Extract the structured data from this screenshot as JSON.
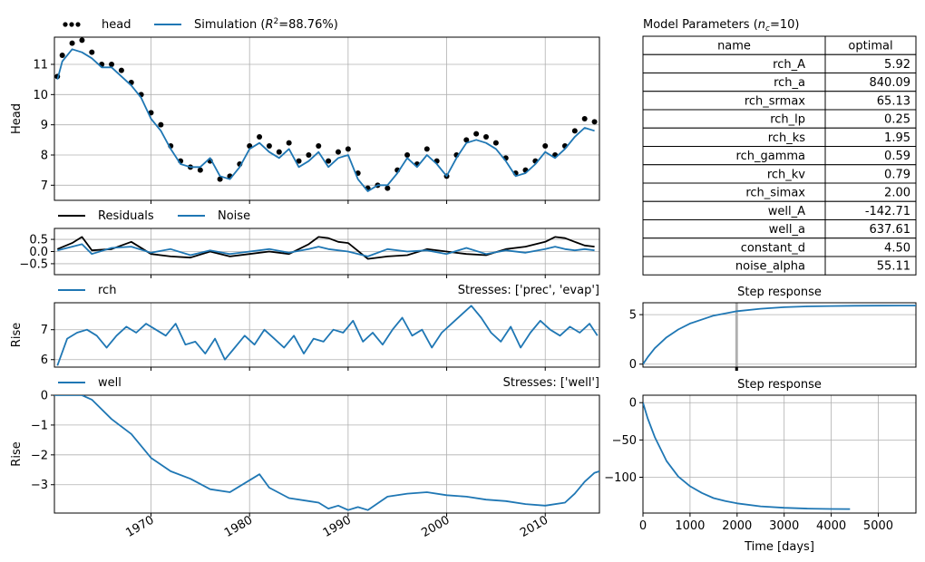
{
  "colors": {
    "blue": "#1f77b4",
    "black": "#000000",
    "grid": "#b0b0b0"
  },
  "chart_data": [
    {
      "type": "line",
      "legend": [
        "head",
        "Simulation (R²=88.76%)"
      ],
      "legend_placement": "top-left, outside",
      "xlabel": "",
      "ylabel": "Head",
      "ylim": [
        6.5,
        11.9
      ],
      "yticks": [
        7,
        8,
        9,
        10,
        11
      ],
      "xlim": [
        1960.2,
        2015.5
      ],
      "xticks": [
        1970,
        1980,
        1990,
        2000,
        2010
      ],
      "grid": true,
      "series": [
        {
          "name": "head",
          "style": "points",
          "color": "#000000",
          "x": [
            1960.5,
            1961,
            1962,
            1963,
            1964,
            1965,
            1966,
            1967,
            1968,
            1969,
            1970,
            1971,
            1972,
            1973,
            1974,
            1975,
            1976,
            1977,
            1978,
            1979,
            1980,
            1981,
            1982,
            1983,
            1984,
            1985,
            1986,
            1987,
            1988,
            1989,
            1990,
            1991,
            1992,
            1993,
            1994,
            1995,
            1996,
            1997,
            1998,
            1999,
            2000,
            2001,
            2002,
            2003,
            2004,
            2005,
            2006,
            2007,
            2008,
            2009,
            2010,
            2011,
            2012,
            2013,
            2014,
            2015
          ],
          "y": [
            10.6,
            11.3,
            11.7,
            11.8,
            11.4,
            11.0,
            11.0,
            10.8,
            10.4,
            10.0,
            9.4,
            9.0,
            8.3,
            7.8,
            7.6,
            7.5,
            7.8,
            7.2,
            7.3,
            7.7,
            8.3,
            8.6,
            8.3,
            8.1,
            8.4,
            7.8,
            8.0,
            8.3,
            7.8,
            8.1,
            8.2,
            7.4,
            6.9,
            7.0,
            6.9,
            7.5,
            8.0,
            7.7,
            8.2,
            7.8,
            7.3,
            8.0,
            8.5,
            8.7,
            8.6,
            8.4,
            7.9,
            7.4,
            7.5,
            7.8,
            8.3,
            8.0,
            8.3,
            8.8,
            9.2,
            9.1
          ]
        },
        {
          "name": "Simulation (R²=88.76%)",
          "style": "line",
          "color": "#1f77b4",
          "x": [
            1960.5,
            1961,
            1962,
            1963,
            1964,
            1965,
            1966,
            1967,
            1968,
            1969,
            1970,
            1971,
            1972,
            1973,
            1974,
            1975,
            1976,
            1977,
            1978,
            1979,
            1980,
            1981,
            1982,
            1983,
            1984,
            1985,
            1986,
            1987,
            1988,
            1989,
            1990,
            1991,
            1992,
            1993,
            1994,
            1995,
            1996,
            1997,
            1998,
            1999,
            2000,
            2001,
            2002,
            2003,
            2004,
            2005,
            2006,
            2007,
            2008,
            2009,
            2010,
            2011,
            2012,
            2013,
            2014,
            2015
          ],
          "y": [
            10.5,
            11.1,
            11.5,
            11.4,
            11.2,
            10.9,
            10.9,
            10.6,
            10.3,
            9.9,
            9.2,
            8.8,
            8.2,
            7.7,
            7.6,
            7.6,
            7.9,
            7.3,
            7.2,
            7.6,
            8.2,
            8.4,
            8.1,
            7.9,
            8.2,
            7.6,
            7.8,
            8.1,
            7.6,
            7.9,
            8.0,
            7.2,
            6.8,
            7.0,
            7.0,
            7.4,
            7.9,
            7.6,
            8.0,
            7.7,
            7.3,
            7.9,
            8.4,
            8.5,
            8.4,
            8.2,
            7.8,
            7.3,
            7.4,
            7.7,
            8.1,
            7.9,
            8.2,
            8.6,
            8.9,
            8.8
          ]
        }
      ]
    },
    {
      "type": "line",
      "legend": [
        "Residuals",
        "Noise"
      ],
      "legend_placement": "top-left, outside",
      "ylim": [
        -0.95,
        0.95
      ],
      "yticks": [
        0.5,
        0.0,
        -0.5
      ],
      "ytick_labels": [
        "0.5",
        "0.0",
        "−0.5"
      ],
      "xlim": [
        1960.2,
        2015.5
      ],
      "grid": true,
      "series": [
        {
          "name": "Residuals",
          "color": "#000000",
          "x": [
            1960.5,
            1962,
            1963,
            1964,
            1966,
            1968,
            1970,
            1972,
            1974,
            1976,
            1978,
            1980,
            1982,
            1984,
            1986,
            1987,
            1988,
            1989,
            1990,
            1992,
            1994,
            1996,
            1998,
            2000,
            2002,
            2004,
            2006,
            2008,
            2010,
            2011,
            2012,
            2013,
            2014,
            2015
          ],
          "y": [
            0.1,
            0.35,
            0.6,
            0.05,
            0.1,
            0.4,
            -0.1,
            -0.2,
            -0.25,
            0.0,
            -0.2,
            -0.1,
            0.0,
            -0.1,
            0.3,
            0.6,
            0.55,
            0.4,
            0.35,
            -0.3,
            -0.2,
            -0.15,
            0.1,
            0.0,
            -0.1,
            -0.15,
            0.1,
            0.2,
            0.4,
            0.6,
            0.55,
            0.4,
            0.25,
            0.2
          ]
        },
        {
          "name": "Noise",
          "color": "#1f77b4",
          "x": [
            1960.5,
            1962,
            1963,
            1964,
            1966,
            1968,
            1970,
            1972,
            1974,
            1976,
            1978,
            1980,
            1982,
            1984,
            1986,
            1987,
            1988,
            1989,
            1990,
            1992,
            1994,
            1996,
            1998,
            2000,
            2002,
            2004,
            2006,
            2008,
            2010,
            2011,
            2012,
            2013,
            2014,
            2015
          ],
          "y": [
            0.05,
            0.2,
            0.3,
            -0.1,
            0.15,
            0.2,
            -0.05,
            0.1,
            -0.15,
            0.05,
            -0.1,
            0.0,
            0.1,
            -0.05,
            0.1,
            0.2,
            0.1,
            0.05,
            0.0,
            -0.2,
            0.1,
            0.0,
            0.05,
            -0.1,
            0.15,
            -0.1,
            0.05,
            -0.05,
            0.1,
            0.2,
            0.1,
            0.05,
            0.1,
            0.05
          ]
        }
      ]
    },
    {
      "type": "line",
      "legend": [
        "rch"
      ],
      "stresses_label": "Stresses: ['prec', 'evap']",
      "ylabel": "Rise",
      "ylim": [
        5.75,
        7.9
      ],
      "yticks": [
        6,
        7
      ],
      "xlim": [
        1960.2,
        2015.5
      ],
      "grid": true,
      "series": [
        {
          "name": "rch",
          "color": "#1f77b4",
          "x": [
            1960.5,
            1961.5,
            1962.5,
            1963.5,
            1964.5,
            1965.5,
            1966.5,
            1967.5,
            1968.5,
            1969.5,
            1970.5,
            1971.5,
            1972.5,
            1973.5,
            1974.5,
            1975.5,
            1976.5,
            1977.5,
            1978.5,
            1979.5,
            1980.5,
            1981.5,
            1982.5,
            1983.5,
            1984.5,
            1985.5,
            1986.5,
            1987.5,
            1988.5,
            1989.5,
            1990.5,
            1991.5,
            1992.5,
            1993.5,
            1994.5,
            1995.5,
            1996.5,
            1997.5,
            1998.5,
            1999.5,
            2000.5,
            2001.5,
            2002.5,
            2003.5,
            2004.5,
            2005.5,
            2006.5,
            2007.5,
            2008.5,
            2009.5,
            2010.5,
            2011.5,
            2012.5,
            2013.5,
            2014.5,
            2015.3
          ],
          "y": [
            5.8,
            6.7,
            6.9,
            7.0,
            6.8,
            6.4,
            6.8,
            7.1,
            6.9,
            7.2,
            7.0,
            6.8,
            7.2,
            6.5,
            6.6,
            6.2,
            6.7,
            6.0,
            6.4,
            6.8,
            6.5,
            7.0,
            6.7,
            6.4,
            6.8,
            6.2,
            6.7,
            6.6,
            7.0,
            6.9,
            7.3,
            6.6,
            6.9,
            6.5,
            7.0,
            7.4,
            6.8,
            7.0,
            6.4,
            6.9,
            7.2,
            7.5,
            7.8,
            7.4,
            6.9,
            6.6,
            7.1,
            6.4,
            6.9,
            7.3,
            7.0,
            6.8,
            7.1,
            6.9,
            7.2,
            6.8
          ]
        }
      ]
    },
    {
      "type": "line",
      "legend": [
        "well"
      ],
      "stresses_label": "Stresses: ['well']",
      "ylabel": "Rise",
      "ylim": [
        -3.95,
        0
      ],
      "yticks": [
        0,
        -1,
        -2,
        -3
      ],
      "ytick_labels": [
        "0",
        "−1",
        "−2",
        "−3"
      ],
      "xlim": [
        1960.2,
        2015.5
      ],
      "xticks": [
        1970,
        1980,
        1990,
        2000,
        2010
      ],
      "grid": true,
      "series": [
        {
          "name": "well",
          "color": "#1f77b4",
          "x": [
            1960.2,
            1963,
            1964,
            1966,
            1968,
            1970,
            1972,
            1974,
            1976,
            1978,
            1980,
            1981,
            1982,
            1984,
            1986,
            1987,
            1988,
            1989,
            1990,
            1991,
            1992,
            1994,
            1996,
            1998,
            2000,
            2002,
            2004,
            2006,
            2008,
            2010,
            2012,
            2013,
            2014,
            2015,
            2015.5
          ],
          "y": [
            0,
            0,
            -0.15,
            -0.8,
            -1.3,
            -2.1,
            -2.55,
            -2.8,
            -3.15,
            -3.25,
            -2.85,
            -2.65,
            -3.1,
            -3.45,
            -3.55,
            -3.6,
            -3.8,
            -3.7,
            -3.85,
            -3.75,
            -3.85,
            -3.4,
            -3.3,
            -3.25,
            -3.35,
            -3.4,
            -3.5,
            -3.55,
            -3.65,
            -3.7,
            -3.6,
            -3.3,
            -2.9,
            -2.6,
            -2.55
          ]
        }
      ]
    },
    {
      "type": "line",
      "title": "Step response",
      "xlim": [
        0,
        5800
      ],
      "ylim": [
        -0.3,
        6.2
      ],
      "yticks": [
        0,
        5
      ],
      "grid": true,
      "series": [
        {
          "name": "rch",
          "color": "#1f77b4",
          "x": [
            0,
            100,
            250,
            500,
            750,
            1000,
            1500,
            2000,
            2500,
            3000,
            3500,
            4000,
            4500,
            5000,
            5500,
            5800
          ],
          "y": [
            0,
            0.7,
            1.6,
            2.7,
            3.5,
            4.1,
            4.9,
            5.35,
            5.6,
            5.75,
            5.83,
            5.87,
            5.9,
            5.91,
            5.92,
            5.92
          ]
        }
      ]
    },
    {
      "type": "line",
      "title": "Step response",
      "xlabel": "Time [days]",
      "xlim": [
        0,
        5800
      ],
      "ylim": [
        -148,
        10
      ],
      "xticks": [
        0,
        1000,
        2000,
        3000,
        4000,
        5000
      ],
      "yticks": [
        0,
        -50,
        -100
      ],
      "ytick_labels": [
        "0",
        "−50",
        "−100"
      ],
      "grid": true,
      "series": [
        {
          "name": "well",
          "color": "#1f77b4",
          "x": [
            0,
            100,
            250,
            500,
            750,
            1000,
            1250,
            1500,
            1750,
            2000,
            2500,
            3000,
            3500,
            4000,
            4400
          ],
          "y": [
            0,
            -21,
            -46,
            -78,
            -99,
            -112,
            -121,
            -128,
            -132,
            -135,
            -139,
            -141,
            -142,
            -142.5,
            -142.6
          ]
        }
      ]
    }
  ],
  "parameters": {
    "title": "Model Parameters (n",
    "title_sub": "c",
    "title_end": "=10)",
    "headers": [
      "name",
      "optimal"
    ],
    "rows": [
      [
        "rch_A",
        "5.92"
      ],
      [
        "rch_a",
        "840.09"
      ],
      [
        "rch_srmax",
        "65.13"
      ],
      [
        "rch_lp",
        "0.25"
      ],
      [
        "rch_ks",
        "1.95"
      ],
      [
        "rch_gamma",
        "0.59"
      ],
      [
        "rch_kv",
        "0.79"
      ],
      [
        "rch_simax",
        "2.00"
      ],
      [
        "well_A",
        "-142.71"
      ],
      [
        "well_a",
        "637.61"
      ],
      [
        "constant_d",
        "4.50"
      ],
      [
        "noise_alpha",
        "55.11"
      ]
    ]
  }
}
